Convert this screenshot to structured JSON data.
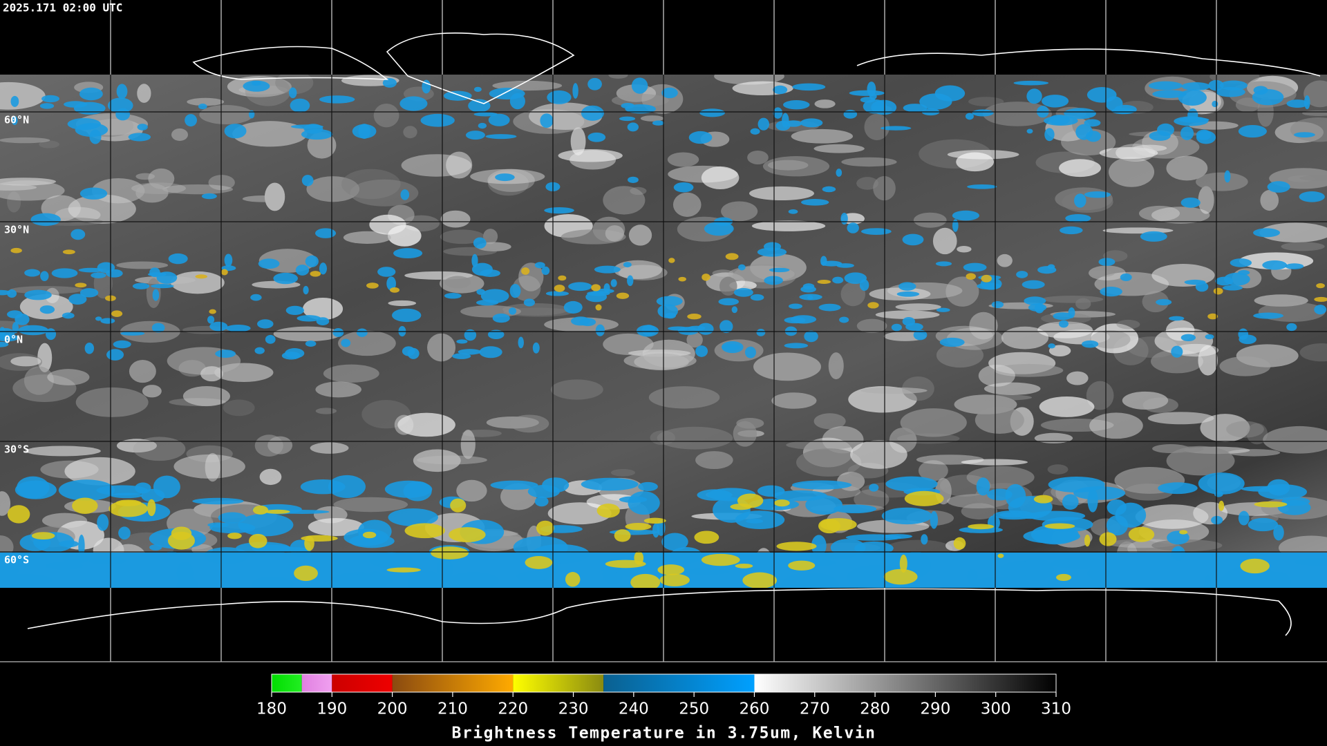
{
  "header": {
    "timestamp": "2025.171 02:00 UTC"
  },
  "map": {
    "lat_labels": [
      "60°N",
      "30°N",
      "0°N",
      "30°S",
      "60°S"
    ]
  },
  "colorbar": {
    "title": "Brightness Temperature in 3.75um, Kelvin",
    "lim": [
      180,
      310
    ],
    "ticks": [
      180,
      190,
      200,
      210,
      220,
      230,
      240,
      250,
      260,
      270,
      280,
      290,
      300,
      310
    ],
    "segments": [
      {
        "from": 180,
        "to": 185,
        "colors": [
          "#00dd00",
          "#22ee22"
        ]
      },
      {
        "from": 185,
        "to": 190,
        "colors": [
          "#e080e0",
          "#f0a0f0"
        ]
      },
      {
        "from": 190,
        "to": 200,
        "colors": [
          "#cc0000",
          "#ee0000"
        ]
      },
      {
        "from": 200,
        "to": 220,
        "colors": [
          "#8a4a10",
          "#ffaa00"
        ]
      },
      {
        "from": 220,
        "to": 235,
        "colors": [
          "#ffff00",
          "#8a8a10"
        ]
      },
      {
        "from": 235,
        "to": 260,
        "colors": [
          "#0a6090",
          "#00a0ff"
        ]
      },
      {
        "from": 260,
        "to": 310,
        "colors": [
          "#ffffff",
          "#000000"
        ]
      }
    ]
  }
}
